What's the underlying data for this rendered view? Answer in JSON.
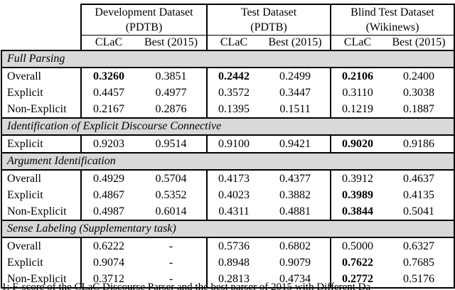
{
  "header": {
    "groups": [
      {
        "title_line1": "Development Dataset",
        "title_line2": "(PDTB)",
        "subcols": [
          "CLaC",
          "Best (2015)"
        ]
      },
      {
        "title_line1": "Test Dataset",
        "title_line2": "(PDTB)",
        "subcols": [
          "CLaC",
          "Best (2015)"
        ]
      },
      {
        "title_line1": "Blind Test Dataset",
        "title_line2": "(Wikinews)",
        "subcols": [
          "CLaC",
          "Best (2015)"
        ]
      }
    ]
  },
  "sections": [
    {
      "title": "Full Parsing",
      "rows": [
        {
          "label": "Overall",
          "values": [
            "0.3260",
            "0.3851",
            "0.2442",
            "0.2499",
            "0.2106",
            "0.2400"
          ],
          "bold": [
            0,
            2,
            4
          ]
        },
        {
          "label": "Explicit",
          "values": [
            "0.4457",
            "0.4977",
            "0.3572",
            "0.3447",
            "0.3110",
            "0.3038"
          ],
          "bold": []
        },
        {
          "label": "Non-Explicit",
          "values": [
            "0.2167",
            "0.2876",
            "0.1395",
            "0.1511",
            "0.1219",
            "0.1887"
          ],
          "bold": []
        }
      ]
    },
    {
      "title": "Identification of Explicit Discourse Connective",
      "rows": [
        {
          "label": "Explicit",
          "values": [
            "0.9203",
            "0.9514",
            "0.9100",
            "0.9421",
            "0.9020",
            "0.9186"
          ],
          "bold": [
            4
          ]
        }
      ]
    },
    {
      "title": "Argument Identification",
      "rows": [
        {
          "label": "Overall",
          "values": [
            "0.4929",
            "0.5704",
            "0.4173",
            "0.4377",
            "0.3912",
            "0.4637"
          ],
          "bold": []
        },
        {
          "label": "Explicit",
          "values": [
            "0.4867",
            "0.5352",
            "0.4023",
            "0.3882",
            "0.3989",
            "0.4135"
          ],
          "bold": [
            4
          ]
        },
        {
          "label": "Non-Explicit",
          "values": [
            "0.4987",
            "0.6014",
            "0.4311",
            "0.4881",
            "0.3844",
            "0.5041"
          ],
          "bold": [
            4
          ]
        }
      ]
    },
    {
      "title": "Sense Labeling (Supplementary task)",
      "rows": [
        {
          "label": "Overall",
          "values": [
            "0.6222",
            "-",
            "0.5736",
            "0.6802",
            "0.5000",
            "0.6327"
          ],
          "bold": []
        },
        {
          "label": "Explicit",
          "values": [
            "0.9074",
            "-",
            "0.8948",
            "0.9079",
            "0.7622",
            "0.7685"
          ],
          "bold": [
            4
          ]
        },
        {
          "label": "Non-Explicit",
          "values": [
            "0.3712",
            "-",
            "0.2813",
            "0.4734",
            "0.2772",
            "0.5176"
          ],
          "bold": [
            4
          ]
        }
      ]
    }
  ],
  "caption_fragment": "1: F-score of the CLaC Discourse Parser and the best parser of 2015 with Different Da",
  "colors": {
    "section_band_bg": "#d9d9d9",
    "border": "#000000",
    "text": "#000000",
    "page_bg": "#ffffff"
  }
}
